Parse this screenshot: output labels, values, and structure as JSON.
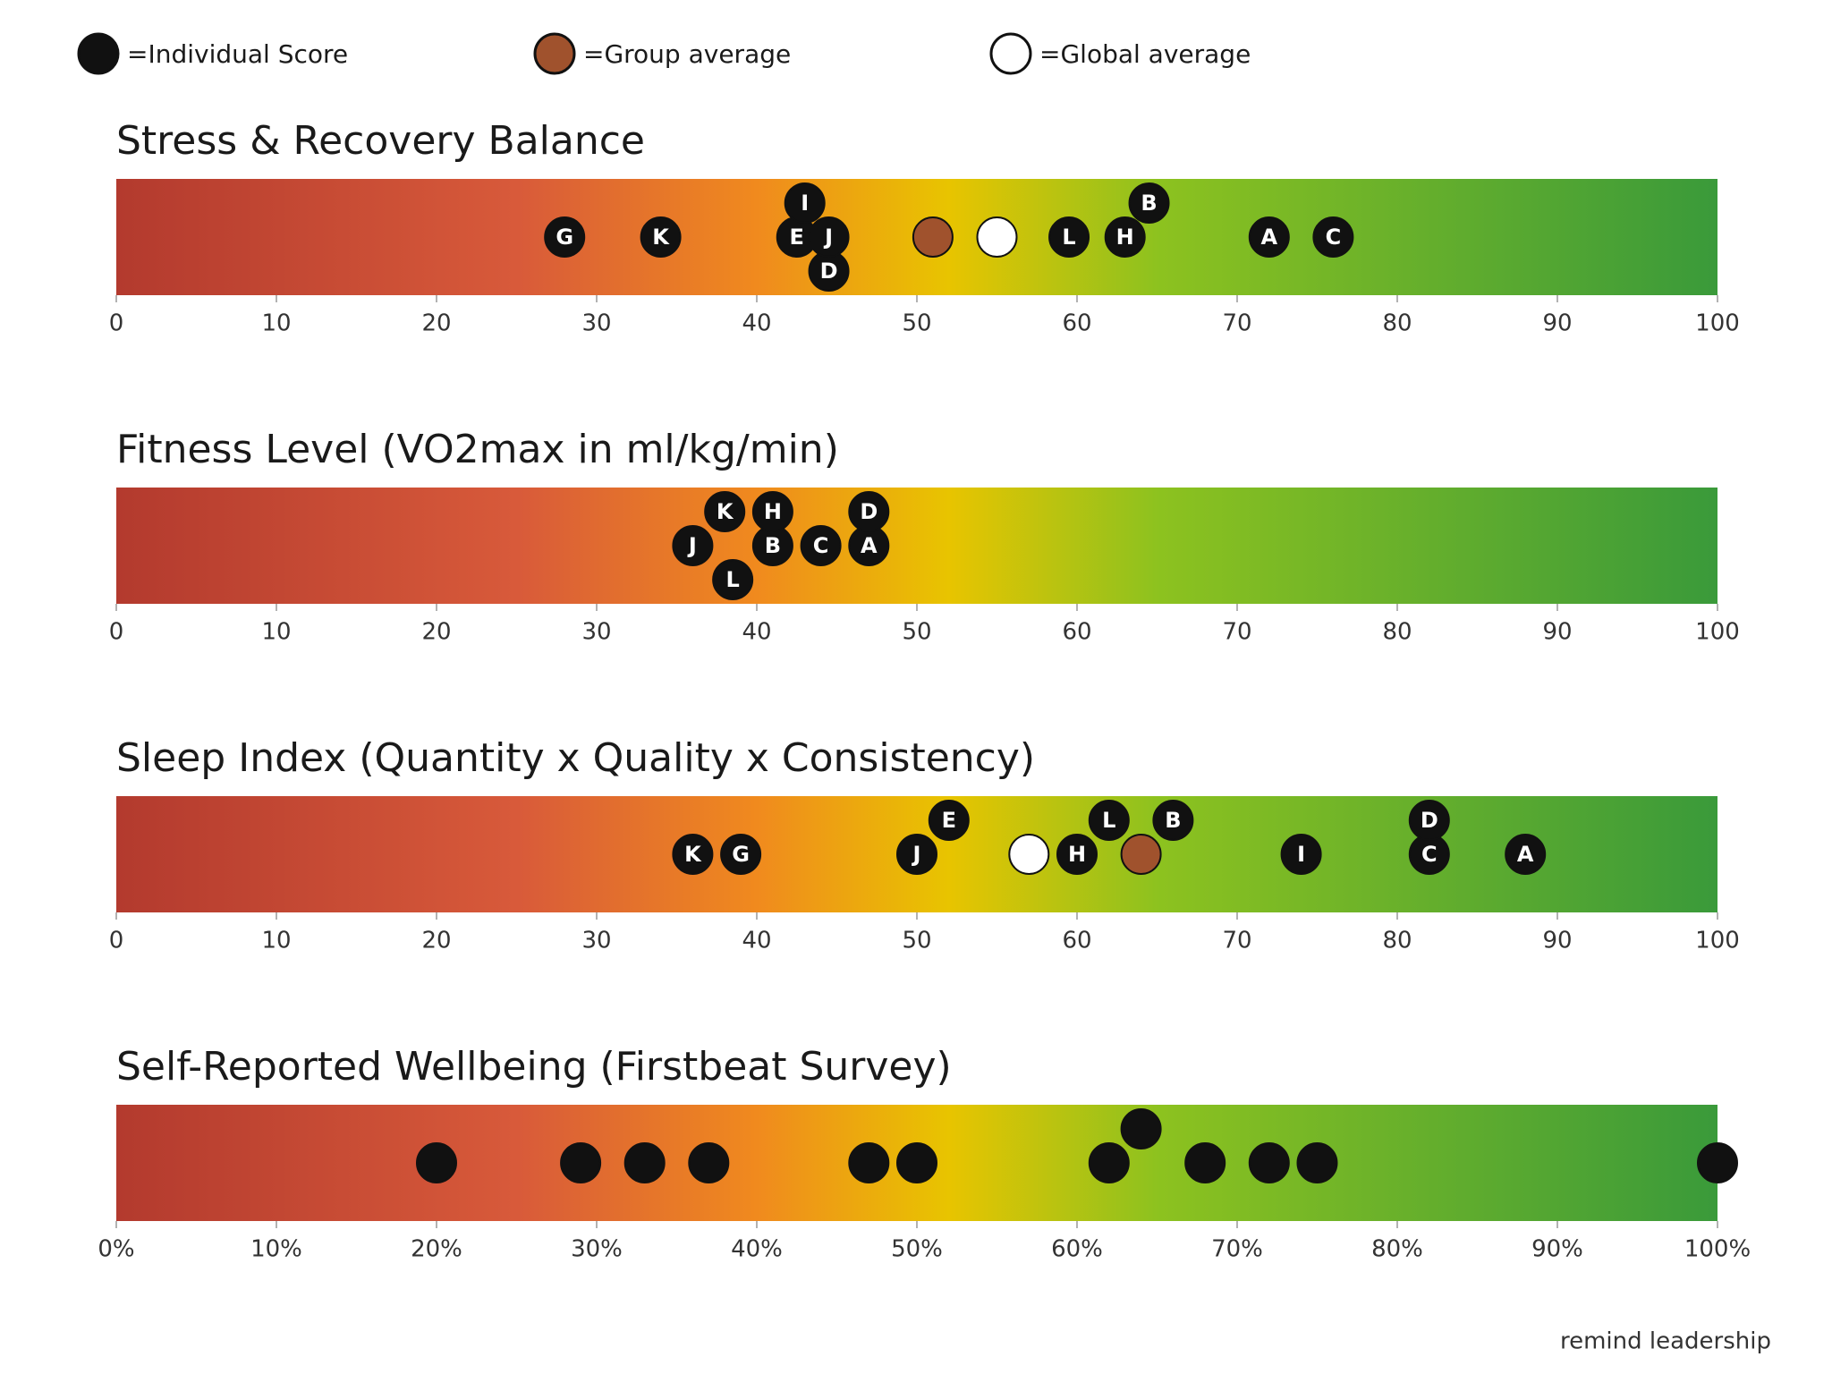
{
  "legend": [
    {
      "label": "=Individual Score",
      "color": "#111111"
    },
    {
      "label": "=Group average",
      "color": "#a0522d"
    },
    {
      "label": "=Global average",
      "color": "#ffffff"
    }
  ],
  "brand": "remind leadership",
  "chart_data": [
    {
      "type": "strip",
      "title": "Stress & Recovery Balance",
      "labels": [
        "G",
        "K",
        "E",
        "I",
        "D",
        "J",
        "L",
        "H",
        "B",
        "A",
        "C"
      ],
      "values": [
        28,
        34,
        42.5,
        43,
        44.5,
        44.5,
        59.5,
        63,
        64.5,
        72,
        76
      ],
      "group_average": 51,
      "global_average": 55,
      "xlim": [
        0,
        100
      ],
      "xticks": [
        0,
        10,
        20,
        30,
        40,
        50,
        60,
        70,
        80,
        90,
        100
      ]
    },
    {
      "type": "strip",
      "title": "Fitness Level (VO2max in ml/kg/min)",
      "labels": [
        "J",
        "K",
        "L",
        "B",
        "H",
        "C",
        "A",
        "D"
      ],
      "values": [
        36,
        38,
        38.5,
        41,
        41,
        44,
        47,
        47
      ],
      "xlim": [
        0,
        100
      ],
      "xticks": [
        0,
        10,
        20,
        30,
        40,
        50,
        60,
        70,
        80,
        90,
        100
      ]
    },
    {
      "type": "strip",
      "title": "Sleep Index (Quantity x Quality x Consistency)",
      "labels": [
        "K",
        "G",
        "J",
        "E",
        "H",
        "L",
        "B",
        "I",
        "C",
        "D",
        "A"
      ],
      "values": [
        36,
        39,
        50,
        52,
        60,
        62,
        66,
        74,
        82,
        82,
        88
      ],
      "group_average": 64,
      "global_average": 57,
      "xlim": [
        0,
        100
      ],
      "xticks": [
        0,
        10,
        20,
        30,
        40,
        50,
        60,
        70,
        80,
        90,
        100
      ]
    },
    {
      "type": "strip",
      "title": "Self-Reported Wellbeing (Firstbeat Survey)",
      "values": [
        20,
        29,
        33,
        37,
        47,
        50,
        62,
        64,
        68,
        72,
        75,
        100
      ],
      "xlim": [
        0,
        100
      ],
      "xticks": [
        {
          "value": 0,
          "label": "0%"
        },
        {
          "value": 10,
          "label": "10%"
        },
        {
          "value": 20,
          "label": "20%"
        },
        {
          "value": 30,
          "label": "30%"
        },
        {
          "value": 40,
          "label": "40%"
        },
        {
          "value": 50,
          "label": "50%"
        },
        {
          "value": 60,
          "label": "60%"
        },
        {
          "value": 70,
          "label": "70%"
        },
        {
          "value": 80,
          "label": "80%"
        },
        {
          "value": 90,
          "label": "90%"
        },
        {
          "value": 100,
          "label": "100%"
        }
      ]
    }
  ]
}
